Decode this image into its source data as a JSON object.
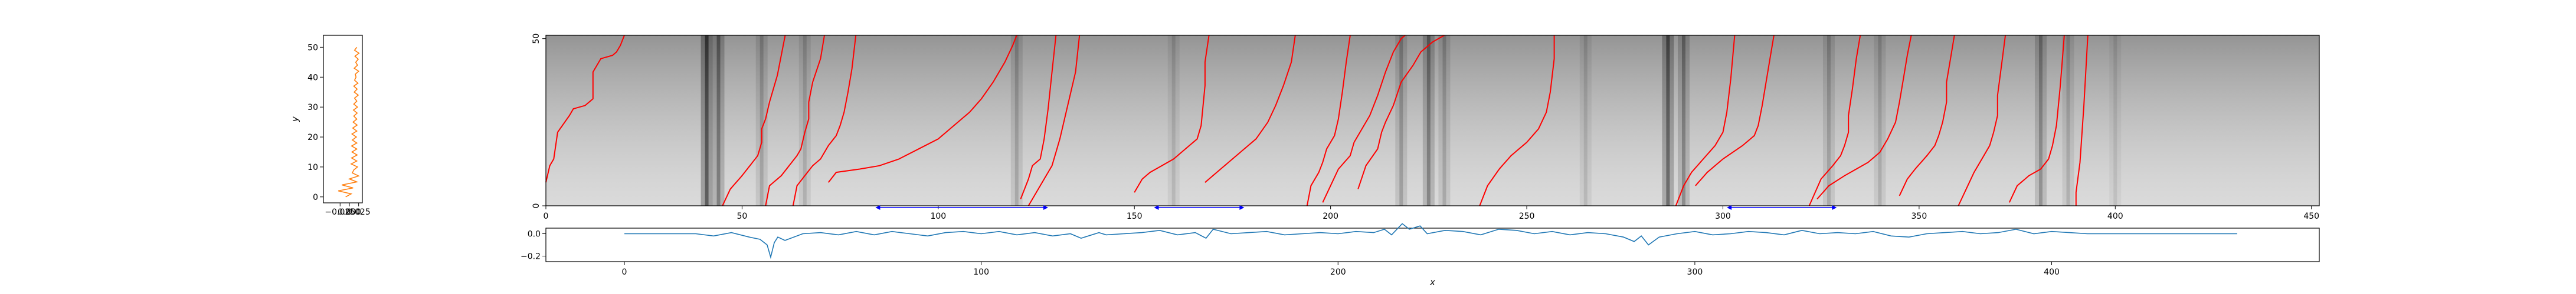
{
  "chart_data": [
    {
      "id": "left_profile",
      "type": "line",
      "title": "",
      "xlabel": "",
      "ylabel": "y",
      "xlim": [
        -0.07,
        0.035
      ],
      "ylim": [
        -2,
        54
      ],
      "xticks": [
        -0.025,
        0.0,
        0.025
      ],
      "xtick_labels": [
        "−0.025",
        "0.000",
        "0.025"
      ],
      "yticks": [
        0,
        10,
        20,
        30,
        40,
        50
      ],
      "ytick_labels": [
        "0",
        "10",
        "20",
        "30",
        "40",
        "50"
      ],
      "color": "#ff7f0e",
      "series": [
        {
          "x": [
            -0.01,
            0.005,
            -0.03,
            0.01,
            -0.02,
            0.02,
            0.0,
            0.025,
            0.008,
            0.012,
            0.022,
            0.005,
            0.02,
            0.006,
            0.021,
            0.007,
            0.02,
            0.006,
            0.02,
            0.008,
            0.019,
            0.007,
            0.02,
            0.009,
            0.021,
            0.01,
            0.02,
            0.012,
            0.021,
            0.011,
            0.022,
            0.012,
            0.02,
            0.014,
            0.024,
            0.013,
            0.021,
            0.012,
            0.023,
            0.014,
            0.018,
            0.016,
            0.025,
            0.013,
            0.022,
            0.017,
            0.024,
            0.015,
            0.026,
            0.014,
            0.02
          ],
          "y": [
            0,
            1,
            2,
            3,
            4,
            5,
            6,
            7,
            8,
            9,
            10,
            11,
            12,
            13,
            14,
            15,
            16,
            17,
            18,
            19,
            20,
            21,
            22,
            23,
            24,
            25,
            26,
            27,
            28,
            29,
            30,
            31,
            32,
            33,
            34,
            35,
            36,
            37,
            38,
            39,
            40,
            41,
            42,
            43,
            44,
            45,
            46,
            47,
            48,
            49,
            50
          ]
        }
      ]
    },
    {
      "id": "main_image",
      "type": "heatmap",
      "title": "",
      "xlabel": "",
      "ylabel": "",
      "xlim": [
        0,
        452
      ],
      "ylim": [
        0,
        51
      ],
      "xticks": [
        0,
        50,
        100,
        150,
        200,
        250,
        300,
        350,
        400,
        450
      ],
      "xtick_labels": [
        "0",
        "50",
        "100",
        "150",
        "200",
        "250",
        "300",
        "350",
        "400",
        "450"
      ],
      "yticks": [
        0,
        50
      ],
      "ytick_labels": [
        "0",
        "50"
      ],
      "colormap": "gray",
      "curve_color": "#ff0000",
      "arrow_color": "#0000ff",
      "dark_bands": [
        {
          "x": 41,
          "strength": 0.9
        },
        {
          "x": 44,
          "strength": 0.6
        },
        {
          "x": 55,
          "strength": 0.3
        },
        {
          "x": 66,
          "strength": 0.25
        },
        {
          "x": 120,
          "strength": 0.3
        },
        {
          "x": 160,
          "strength": 0.2
        },
        {
          "x": 218,
          "strength": 0.35
        },
        {
          "x": 225,
          "strength": 0.55
        },
        {
          "x": 229,
          "strength": 0.3
        },
        {
          "x": 265,
          "strength": 0.2
        },
        {
          "x": 286,
          "strength": 0.75
        },
        {
          "x": 290,
          "strength": 0.5
        },
        {
          "x": 327,
          "strength": 0.3
        },
        {
          "x": 340,
          "strength": 0.25
        },
        {
          "x": 381,
          "strength": 0.45
        },
        {
          "x": 388,
          "strength": 0.25
        },
        {
          "x": 400,
          "strength": 0.15
        }
      ],
      "curves": [
        {
          "x": [
            0,
            1,
            2,
            3,
            6,
            7,
            10,
            12,
            12,
            14,
            17,
            18,
            19,
            20
          ],
          "y": [
            7,
            12,
            14,
            22,
            27,
            29,
            30,
            32,
            40,
            44,
            45,
            46,
            48,
            51
          ]
        },
        {
          "x": [
            45,
            47,
            50,
            52,
            54,
            55,
            55,
            56,
            57,
            59,
            61
          ],
          "y": [
            0,
            5,
            9,
            12,
            15,
            19,
            23,
            26,
            31,
            39,
            51
          ]
        },
        {
          "x": [
            56,
            57,
            60,
            62,
            64,
            65,
            66,
            67,
            67,
            68,
            70,
            71
          ],
          "y": [
            0,
            6,
            9,
            12,
            15,
            17,
            22,
            26,
            31,
            37,
            44,
            51
          ]
        },
        {
          "x": [
            63,
            64,
            66,
            68,
            70,
            72,
            74,
            75,
            76,
            77,
            78,
            79
          ],
          "y": [
            0,
            6,
            9,
            12,
            14,
            18,
            21,
            24,
            28,
            34,
            41,
            51
          ]
        },
        {
          "x": [
            72,
            74,
            80,
            85,
            90,
            95,
            100,
            104,
            108,
            111,
            114,
            117,
            119,
            120
          ],
          "y": [
            7,
            10,
            11,
            12,
            14,
            17,
            20,
            24,
            28,
            32,
            37,
            43,
            48,
            51
          ]
        },
        {
          "x": [
            121,
            123,
            124,
            126,
            127,
            128,
            129,
            130
          ],
          "y": [
            2,
            8,
            12,
            14,
            20,
            29,
            40,
            51
          ]
        },
        {
          "x": [
            123,
            125,
            127,
            129,
            130,
            131,
            133,
            135,
            136
          ],
          "y": [
            0,
            4,
            8,
            12,
            16,
            20,
            30,
            40,
            51
          ]
        },
        {
          "x": [
            150,
            152,
            154,
            157,
            160,
            163,
            166,
            167,
            168,
            168,
            169
          ],
          "y": [
            4,
            8,
            10,
            12,
            14,
            17,
            20,
            24,
            36,
            43,
            51
          ]
        },
        {
          "x": [
            168,
            171,
            175,
            178,
            181,
            184,
            186,
            188,
            190,
            191
          ],
          "y": [
            7,
            10,
            14,
            17,
            20,
            25,
            30,
            36,
            43,
            51
          ]
        },
        {
          "x": [
            194,
            195,
            197,
            198,
            199,
            201,
            202,
            203,
            204,
            205
          ],
          "y": [
            0,
            6,
            10,
            13,
            17,
            21,
            26,
            34,
            43,
            51
          ]
        },
        {
          "x": [
            198,
            200,
            202,
            205,
            206,
            208,
            210,
            212,
            214,
            216,
            218,
            219
          ],
          "y": [
            1,
            6,
            11,
            15,
            19,
            23,
            27,
            33,
            40,
            46,
            50,
            51
          ]
        },
        {
          "x": [
            207,
            209,
            212,
            213,
            214,
            216,
            218,
            221,
            223,
            226,
            229
          ],
          "y": [
            5,
            12,
            17,
            22,
            25,
            30,
            37,
            42,
            46,
            49,
            51
          ]
        },
        {
          "x": [
            238,
            240,
            243,
            246,
            250,
            253,
            255,
            256,
            257,
            257
          ],
          "y": [
            0,
            6,
            11,
            15,
            19,
            23,
            28,
            34,
            44,
            51
          ]
        },
        {
          "x": [
            288,
            290,
            292,
            295,
            298,
            300,
            301,
            302,
            303
          ],
          "y": [
            0,
            6,
            10,
            14,
            18,
            22,
            28,
            38,
            51
          ]
        },
        {
          "x": [
            293,
            296,
            300,
            305,
            308,
            309,
            310,
            311,
            312,
            313
          ],
          "y": [
            6,
            10,
            14,
            18,
            21,
            24,
            30,
            37,
            44,
            51
          ]
        },
        {
          "x": [
            322,
            325,
            328,
            330,
            331,
            332,
            332,
            333,
            334,
            335
          ],
          "y": [
            0,
            8,
            12,
            15,
            18,
            22,
            27,
            35,
            44,
            51
          ]
        },
        {
          "x": [
            324,
            327,
            331,
            334,
            337,
            340,
            342,
            344,
            345,
            346,
            347,
            348
          ],
          "y": [
            2,
            6,
            9,
            11,
            13,
            16,
            20,
            25,
            31,
            38,
            45,
            51
          ]
        },
        {
          "x": [
            345,
            347,
            349,
            352,
            354,
            355,
            356,
            357,
            357,
            358,
            359
          ],
          "y": [
            3,
            8,
            11,
            15,
            18,
            21,
            25,
            31,
            37,
            44,
            51
          ]
        },
        {
          "x": [
            360,
            362,
            364,
            366,
            368,
            369,
            370,
            370,
            371,
            372
          ],
          "y": [
            0,
            5,
            10,
            14,
            18,
            22,
            27,
            33,
            42,
            51
          ]
        },
        {
          "x": [
            373,
            375,
            378,
            381,
            383,
            384,
            385,
            386,
            387
          ],
          "y": [
            1,
            6,
            9,
            11,
            14,
            18,
            24,
            36,
            51
          ]
        },
        {
          "x": [
            390,
            390,
            391,
            392,
            393
          ],
          "y": [
            0,
            4,
            13,
            30,
            51
          ]
        }
      ],
      "arrows": [
        {
          "x1": 84,
          "x2": 128
        },
        {
          "x1": 155,
          "x2": 178
        },
        {
          "x1": 301,
          "x2": 329
        }
      ]
    },
    {
      "id": "bottom_signal",
      "type": "line",
      "title": "",
      "xlabel": "x",
      "ylabel": "",
      "xlim": [
        -22,
        475
      ],
      "ylim": [
        -0.25,
        0.05
      ],
      "xticks": [
        0,
        100,
        200,
        300,
        400
      ],
      "xtick_labels": [
        "0",
        "100",
        "200",
        "300",
        "400"
      ],
      "yticks": [
        0.0,
        -0.2
      ],
      "ytick_labels": [
        "0.0",
        "−0.2"
      ],
      "color": "#1f77b4",
      "series": [
        {
          "x": [
            0,
            10,
            20,
            25,
            30,
            35,
            38,
            40,
            41,
            42,
            43,
            45,
            50,
            55,
            60,
            65,
            70,
            75,
            80,
            85,
            90,
            95,
            100,
            105,
            110,
            115,
            120,
            125,
            128,
            130,
            133,
            135,
            140,
            145,
            150,
            155,
            160,
            163,
            165,
            170,
            175,
            180,
            185,
            190,
            195,
            200,
            205,
            210,
            213,
            215,
            218,
            220,
            223,
            225,
            230,
            235,
            240,
            245,
            250,
            255,
            260,
            265,
            270,
            275,
            280,
            283,
            285,
            287,
            290,
            295,
            300,
            305,
            310,
            315,
            320,
            325,
            330,
            335,
            340,
            345,
            350,
            355,
            360,
            365,
            370,
            375,
            380,
            385,
            390,
            395,
            400,
            405,
            410,
            420,
            430,
            440,
            450,
            452
          ],
          "y": [
            0.0,
            0.0,
            0.0,
            -0.02,
            0.01,
            -0.03,
            -0.05,
            -0.1,
            -0.21,
            -0.08,
            -0.03,
            -0.06,
            0.0,
            0.01,
            -0.01,
            0.02,
            -0.01,
            0.02,
            0.0,
            -0.02,
            0.01,
            0.02,
            0.0,
            0.02,
            -0.01,
            0.01,
            -0.02,
            0.0,
            -0.04,
            -0.02,
            0.01,
            -0.01,
            0.0,
            0.01,
            0.03,
            -0.01,
            0.01,
            -0.04,
            0.04,
            0.0,
            0.01,
            0.02,
            -0.01,
            0.0,
            0.01,
            0.0,
            0.02,
            0.01,
            0.04,
            -0.01,
            0.09,
            0.04,
            0.07,
            0.0,
            0.03,
            0.02,
            -0.01,
            0.04,
            0.03,
            0.0,
            0.02,
            -0.01,
            0.01,
            0.0,
            -0.03,
            -0.07,
            -0.02,
            -0.1,
            -0.03,
            0.0,
            0.02,
            -0.01,
            0.0,
            0.02,
            0.01,
            -0.01,
            0.03,
            0.0,
            0.01,
            0.0,
            0.02,
            -0.02,
            -0.03,
            0.0,
            0.01,
            0.02,
            0.0,
            0.01,
            0.04,
            0.0,
            0.02,
            0.01,
            0.0,
            0.0,
            0.0,
            0.0,
            0.0,
            0.0
          ]
        }
      ]
    }
  ]
}
